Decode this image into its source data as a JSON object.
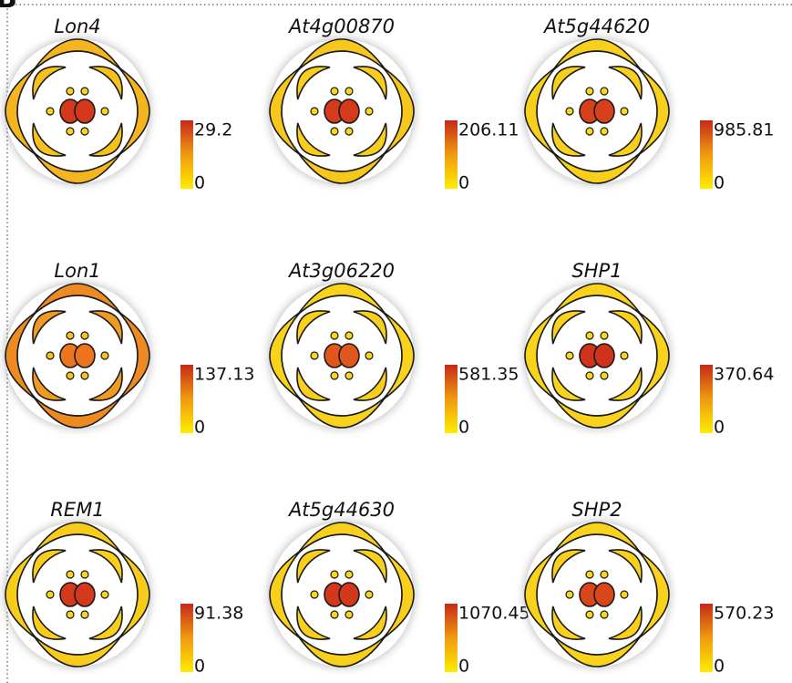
{
  "panel_label": "B",
  "panels": [
    {
      "gene": "Lon4",
      "max": 29.2,
      "min": 0,
      "colors": {
        "sepal": "#f5b51f",
        "petal": "#f7c11c",
        "stamen": "#f8d21b",
        "carpel": "#d5381a"
      }
    },
    {
      "gene": "At4g00870",
      "max": 206.11,
      "min": 0,
      "colors": {
        "sepal": "#f7c81b",
        "petal": "#f8cd1b",
        "stamen": "#f9d81b",
        "carpel": "#d53a1a"
      }
    },
    {
      "gene": "At5g44620",
      "max": 985.81,
      "min": 0,
      "colors": {
        "sepal": "#f8cf1b",
        "petal": "#f8d01b",
        "stamen": "#f9da1b",
        "carpel": "#d6401a"
      }
    },
    {
      "gene": "Lon1",
      "max": 137.13,
      "min": 0,
      "colors": {
        "sepal": "#ee8a22",
        "petal": "#f09a20",
        "stamen": "#f5c31c",
        "carpel": "#ec741c"
      }
    },
    {
      "gene": "At3g06220",
      "max": 581.35,
      "min": 0,
      "colors": {
        "sepal": "#f8d21b",
        "petal": "#f8cf1b",
        "stamen": "#f9d81b",
        "carpel": "#e0561b"
      }
    },
    {
      "gene": "SHP1",
      "max": 370.64,
      "min": 0,
      "colors": {
        "sepal": "#f8d21b",
        "petal": "#f8d21b",
        "stamen": "#f9d81b",
        "carpel": "#cf331a"
      }
    },
    {
      "gene": "REM1",
      "max": 91.38,
      "min": 0,
      "colors": {
        "sepal": "#f7cc1b",
        "petal": "#f8ce1b",
        "stamen": "#f9d51b",
        "carpel": "#d3391a"
      }
    },
    {
      "gene": "At5g44630",
      "max": 1070.45,
      "min": 0,
      "colors": {
        "sepal": "#f8cf1b",
        "petal": "#f8d01b",
        "stamen": "#f9d81b",
        "carpel": "#d3381a"
      }
    },
    {
      "gene": "SHP2",
      "max": 570.23,
      "min": 0,
      "colors": {
        "sepal": "#f8d21b",
        "petal": "#f8d01b",
        "stamen": "#f9d81b",
        "carpel": "#d8461a"
      }
    }
  ]
}
